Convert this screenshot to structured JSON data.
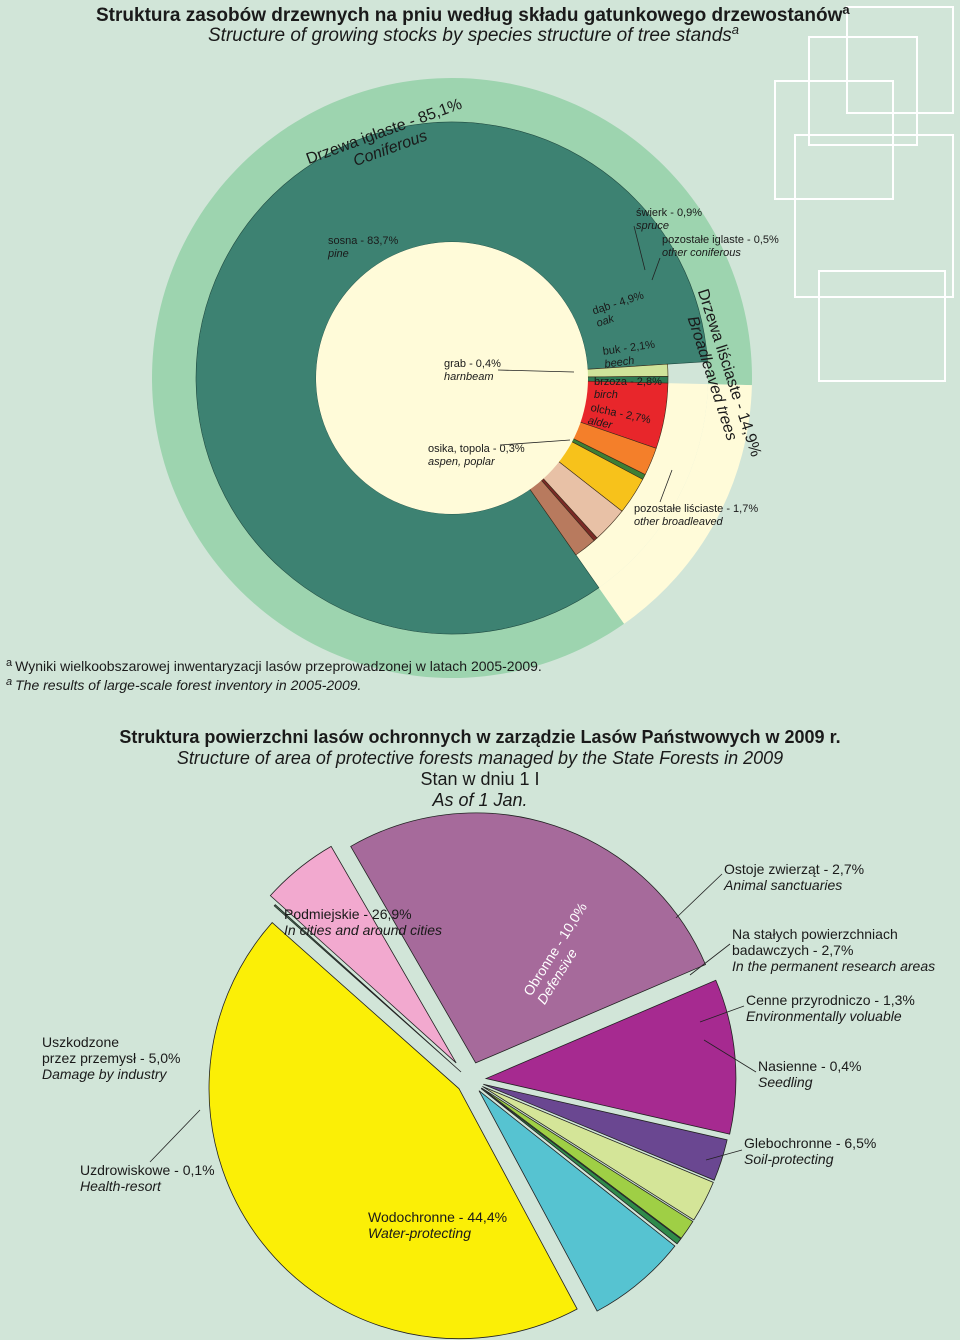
{
  "top": {
    "title_pl": "Struktura zasobów drzewnych na pniu według składu gatunkowego drzewostanów",
    "title_en": "Structure of growing stocks by species structure of tree stands",
    "sup": "a",
    "conifer_pl": "Drzewa iglaste - 85,1%",
    "conifer_en": "Coniferous",
    "broad_pl": "Drzewa liściaste - 14,9%",
    "broad_en": "Broadleaved trees",
    "footnote_pl": "Wyniki wielkoobszarowej inwentaryzacji lasów przeprowadzonej w latach 2005-2009.",
    "footnote_en": "The results of large-scale forest inventory in 2005-2009."
  },
  "bottom": {
    "title_pl": "Struktura powierzchni lasów ochronnych w zarządzie Lasów Państwowych w 2009 r.",
    "title_en": "Structure of area of protective forests managed by the State Forests in 2009",
    "state_pl": "Stan w dniu 1 I",
    "state_en": "As of 1 Jan."
  },
  "chart_data": [
    {
      "type": "pie",
      "title": "Struktura zasobów drzewnych na pniu według składu gatunkowego drzewostanów / Structure of growing stocks by species structure of tree stands",
      "groups": [
        {
          "pl": "Drzewa iglaste",
          "en": "Coniferous",
          "value": 85.1
        },
        {
          "pl": "Drzewa liściaste",
          "en": "Broadleaved trees",
          "value": 14.9
        }
      ],
      "slices": [
        {
          "pl": "sosna - 83,7%",
          "en": "pine",
          "value": 83.7,
          "color": "#3d8272"
        },
        {
          "pl": "świerk - 0,9%",
          "en": "spruce",
          "value": 0.9,
          "color": "#cfe39a"
        },
        {
          "pl": "pozostałe iglaste - 0,5%",
          "en": "other coniferous",
          "value": 0.5,
          "color": "#2f7a54"
        },
        {
          "pl": "dąb - 4,9%",
          "en": "oak",
          "value": 4.9,
          "color": "#e8262b"
        },
        {
          "pl": "buk - 2,1%",
          "en": "beech",
          "value": 2.1,
          "color": "#f47f2a"
        },
        {
          "pl": "grab - 0,4%",
          "en": "harnbeam",
          "value": 0.4,
          "color": "#3d7f35"
        },
        {
          "pl": "brzoza - 2,8%",
          "en": "birch",
          "value": 2.8,
          "color": "#f7c21b"
        },
        {
          "pl": "olcha - 2,7%",
          "en": "alder",
          "value": 2.7,
          "color": "#e8c1a6"
        },
        {
          "pl": "osika, topola - 0,3%",
          "en": "aspen, poplar",
          "value": 0.3,
          "color": "#7a2a26"
        },
        {
          "pl": "pozostałe liściaste - 1,7%",
          "en": "other broadleaved",
          "value": 1.7,
          "color": "#b87a5e"
        }
      ]
    },
    {
      "type": "pie",
      "title": "Struktura powierzchni lasów ochronnych w zarządzie Lasów Państwowych w 2009 r. / Structure of area of protective forests managed by the State Forests in 2009",
      "slices": [
        {
          "pl": "Podmiejskie - 26,9%",
          "en": "In cities and around cities",
          "value": 26.9,
          "color": "#a66a9b"
        },
        {
          "pl": "Obronne - 10,0%",
          "en": "Defensive",
          "value": 10.0,
          "color": "#a62a90"
        },
        {
          "pl": "Ostoje zwierząt - 2,7%",
          "en": "Animal sanctuaries",
          "value": 2.7,
          "color": "#6a4791"
        },
        {
          "pl": "Na stałych powierzchniach badawczych - 2,7%",
          "en": "In the permanent research areas",
          "value": 2.7,
          "color": "#d4e598"
        },
        {
          "pl": "Cenne przyrodniczo - 1,3%",
          "en": "Environmentally voluable",
          "value": 1.3,
          "color": "#9fcf45"
        },
        {
          "pl": "Nasienne - 0,4%",
          "en": "Seedling",
          "value": 0.4,
          "color": "#2f8a4a"
        },
        {
          "pl": "Glebochronne - 6,5%",
          "en": "Soil-protecting",
          "value": 6.5,
          "color": "#56c3d1"
        },
        {
          "pl": "Wodochronne - 44,4%",
          "en": "Water-protecting",
          "value": 44.4,
          "color": "#fbef06"
        },
        {
          "pl": "Uzdrowiskowe - 0,1%",
          "en": "Health-resort",
          "value": 0.1,
          "color": "#4a7a5a"
        },
        {
          "pl": "Uszkodzone przez przemysł - 5,0%",
          "en": "Damage by industry",
          "value": 5.0,
          "color": "#f2a9cf"
        }
      ]
    }
  ]
}
